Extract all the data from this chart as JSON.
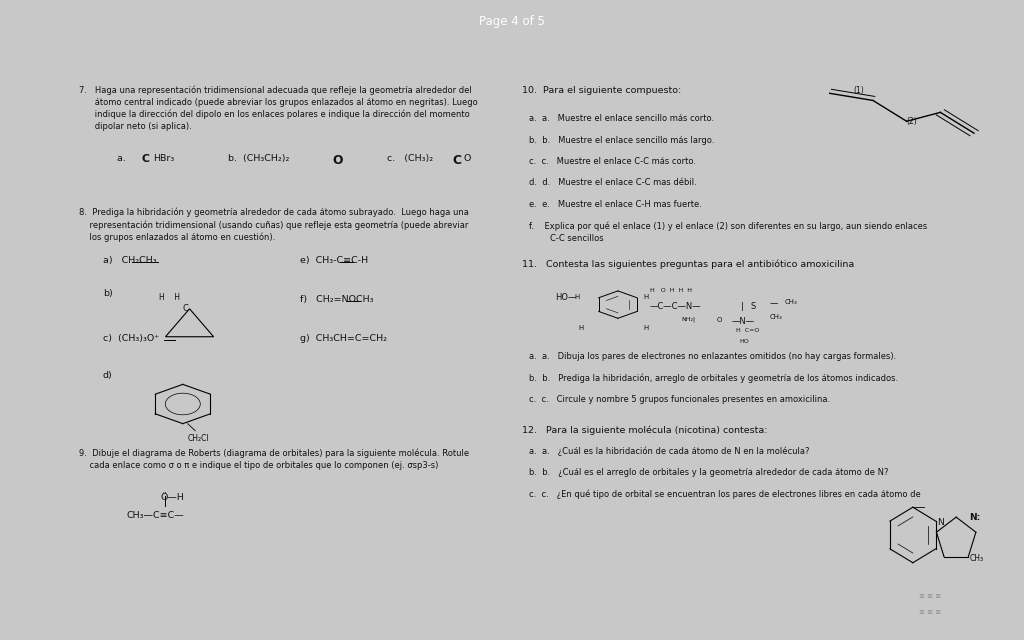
{
  "bg_color": "#c8c8c8",
  "page_bg": "#f5f5f5",
  "header_text": "Page 4 of 5",
  "header_bg": "#5a5a6e",
  "header_text_color": "#ffffff",
  "q7_text": "7.   Haga una representación tridimensional adecuada que refleje la geometría alrededor del\n      átomo central indicado (puede abreviar los grupos enlazados al átomo en negritas). Luego\n      indique la dirección del dipolo en los enlaces polares e indique la dirección del momento\n      dipolar neto (si aplica).",
  "q8_text": "8.  Prediga la hibridación y geometría alrededor de cada átomo subrayado.  Luego haga una\n    representación tridimensional (usando cuñas) que refleje esta geometría (puede abreviar\n    los grupos enlazados al átomo en cuestión).",
  "q9_text": "9.  Dibuje el diagrama de Roberts (diagrama de orbitales) para la siguiente molécula. Rotule\n    cada enlace como σ o π e indique el tipo de orbitales que lo componen (ej. σsp3-s)",
  "q10_text": "10.  Para el siguiente compuesto:",
  "q10a": "a.   Muestre el enlace sencillo más corto.",
  "q10b": "b.   Muestre el enlace sencillo más largo.",
  "q10c": "c.   Muestre el enlace C-C más corto.",
  "q10d": "d.   Muestre el enlace C-C mas débil.",
  "q10e": "e.   Muestre el enlace C-H mas fuerte.",
  "q10f": "f.    Explica por qué el enlace (1) y el enlace (2) son diferentes en su largo, aun siendo enlaces\n        C-C sencillos",
  "q11_text": "11.   Contesta las siguientes preguntas para el antibiótico amoxicilina",
  "q11a": "a.   Dibuja los pares de electrones no enlazantes omitidos (no hay cargas formales).",
  "q11b": "b.   Prediga la hibridación, arreglo de orbitales y geometría de los átomos indicados.",
  "q11c": "c.   Circule y nombre 5 grupos funcionales presentes en amoxicilina.",
  "q12_text": "12.   Para la siguiente molécula (nicotina) contesta:",
  "q12a": "a.   ¿Cuál es la hibridación de cada átomo de N en la molécula?",
  "q12b": "b.   ¿Cuál es el arreglo de orbitales y la geometría alrededor de cada átomo de N?",
  "q12c": "c.   ¿En qué tipo de orbital se encuentran los pares de electrones libres en cada átomo de",
  "font_size_body": 6.8,
  "font_size_small": 6.0,
  "font_size_header": 8.5
}
